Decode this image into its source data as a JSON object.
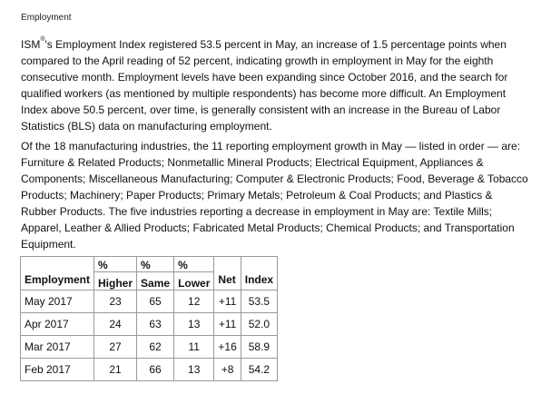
{
  "heading": "Employment",
  "paragraph1": {
    "prefix": "ISM",
    "mark": "®",
    "text": "'s Employment Index registered 53.5 percent in May, an increase of 1.5 percentage points when compared to the April reading of 52 percent, indicating growth in employment in May for the eighth consecutive month. Employment levels have been expanding since October 2016, and the search for qualified workers (as mentioned by multiple respondents) has become more difficult. An Employment Index above 50.5 percent, over time, is generally consistent with an increase in the Bureau of Labor Statistics (BLS) data on manufacturing employment."
  },
  "paragraph2": "Of the 18 manufacturing industries, the 11 reporting employment growth in May — listed in order — are: Furniture & Related Products; Nonmetallic Mineral Products; Electrical Equipment, Appliances & Components; Miscellaneous Manufacturing; Computer & Electronic Products; Food, Beverage & Tobacco Products; Machinery; Paper Products; Primary Metals; Petroleum & Coal Products; and Plastics & Rubber Products. The five industries reporting a decrease in employment in May are: Textile Mills; Apparel, Leather & Allied Products; Fabricated Metal Products; Chemical Products; and Transportation Equipment.",
  "table": {
    "header_top": [
      "",
      "%",
      "%",
      "%",
      "",
      ""
    ],
    "header_bottom": [
      "Employment",
      "Higher",
      "Same",
      "Lower",
      "Net",
      "Index"
    ],
    "rows": [
      [
        "May 2017",
        "23",
        "65",
        "12",
        "+11",
        "53.5"
      ],
      [
        "Apr 2017",
        "24",
        "63",
        "13",
        "+11",
        "52.0"
      ],
      [
        "Mar 2017",
        "27",
        "62",
        "11",
        "+16",
        "58.9"
      ],
      [
        "Feb 2017",
        "21",
        "66",
        "13",
        "+8",
        "54.2"
      ]
    ]
  }
}
